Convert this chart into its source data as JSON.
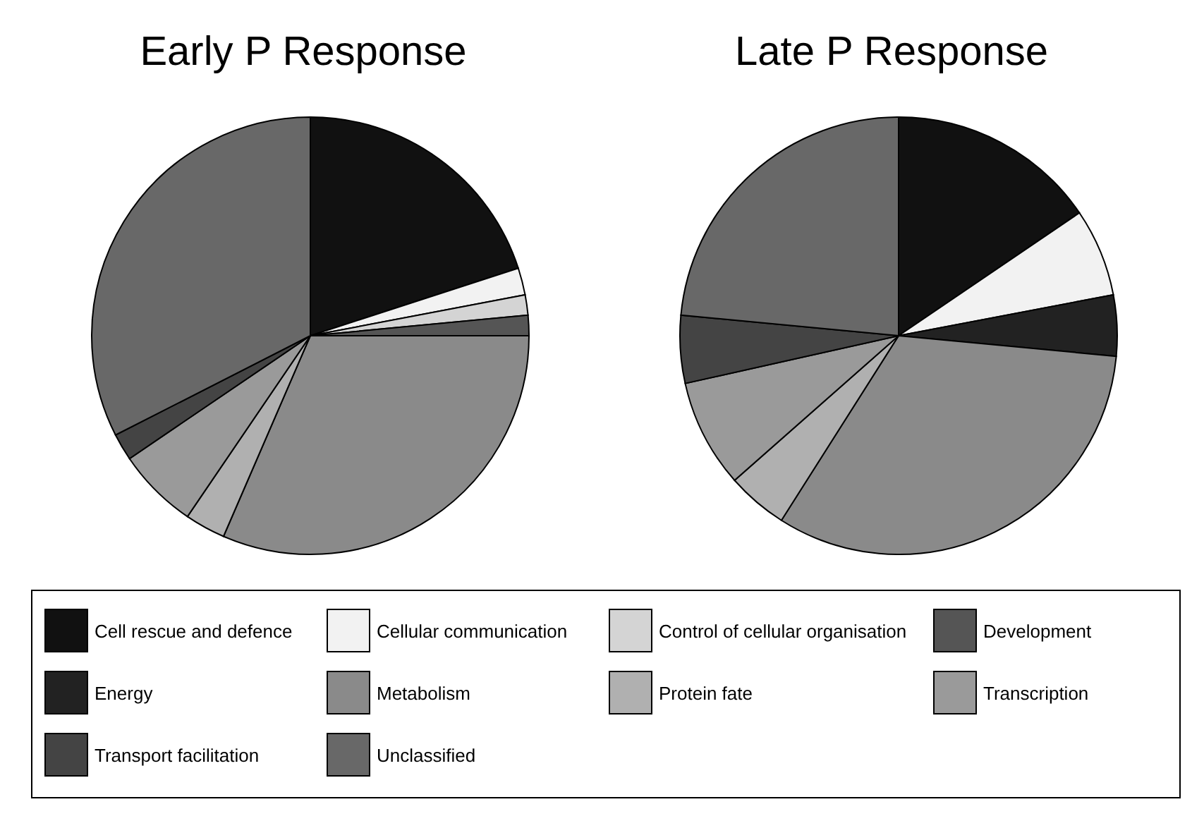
{
  "chart_data": {
    "type": "pie",
    "categories": [
      "Cell rescue and defence",
      "Cellular communication",
      "Control of cellular organisation",
      "Development",
      "Energy",
      "Metabolism",
      "Protein fate",
      "Transcription",
      "Transport facilitation",
      "Unclassified"
    ],
    "colors": [
      "#111111",
      "#f2f2f2",
      "#d4d4d4",
      "#555555",
      "#222222",
      "#8a8a8a",
      "#b0b0b0",
      "#9a9a9a",
      "#444444",
      "#686868"
    ],
    "legend": "bottom",
    "series": [
      {
        "name": "Early P Response",
        "values": [
          20,
          2,
          1.5,
          1.5,
          0,
          31.5,
          3,
          6,
          2,
          32.5
        ]
      },
      {
        "name": "Late P Response",
        "values": [
          15.5,
          6.5,
          0,
          0,
          4.5,
          32.5,
          4.5,
          8,
          5,
          23.5
        ]
      }
    ]
  }
}
